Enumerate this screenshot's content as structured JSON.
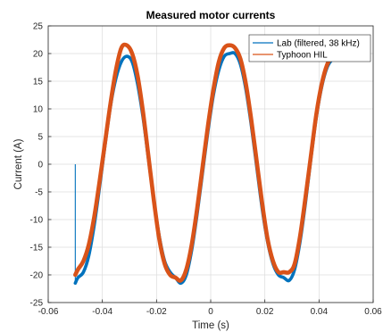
{
  "chart_data": {
    "type": "line",
    "title": "Measured motor currents",
    "xlabel": "Time (s)",
    "ylabel": "Current (A)",
    "xlim": [
      -0.06,
      0.06
    ],
    "ylim": [
      -25,
      25
    ],
    "xticks": [
      -0.06,
      -0.04,
      -0.02,
      0,
      0.02,
      0.04,
      0.06
    ],
    "xtick_labels": [
      "-0.06",
      "-0.04",
      "-0.02",
      "0",
      "0.02",
      "0.04",
      "0.06"
    ],
    "yticks": [
      -25,
      -20,
      -15,
      -10,
      -5,
      0,
      5,
      10,
      15,
      20,
      25
    ],
    "ytick_labels": [
      "-25",
      "-20",
      "-15",
      "-10",
      "-5",
      "0",
      "5",
      "10",
      "15",
      "20",
      "25"
    ],
    "grid": true,
    "legend_position": "top-right",
    "series": [
      {
        "name": "Lab (filtered, 38 kHz)",
        "color": "#0072BD",
        "x": [
          -0.05,
          -0.05,
          -0.049,
          -0.047,
          -0.045,
          -0.043,
          -0.041,
          -0.039,
          -0.037,
          -0.035,
          -0.033,
          -0.031,
          -0.029,
          -0.027,
          -0.025,
          -0.023,
          -0.021,
          -0.019,
          -0.017,
          -0.015,
          -0.013,
          -0.011,
          -0.009,
          -0.007,
          -0.005,
          -0.003,
          -0.001,
          0.001,
          0.003,
          0.005,
          0.007,
          0.009,
          0.011,
          0.013,
          0.015,
          0.017,
          0.019,
          0.021,
          0.023,
          0.025,
          0.027,
          0.029,
          0.031,
          0.033,
          0.035,
          0.037,
          0.039,
          0.041,
          0.043,
          0.045,
          0.047
        ],
        "y": [
          0,
          -21.5,
          -20.5,
          -19.5,
          -16.5,
          -11.0,
          -4.0,
          3.5,
          10.5,
          15.5,
          18.5,
          19.5,
          18.5,
          14.5,
          8.5,
          1.0,
          -6.5,
          -13.0,
          -17.5,
          -19.5,
          -20.5,
          -21.5,
          -20.0,
          -15.5,
          -9.0,
          -1.5,
          6.0,
          12.5,
          17.0,
          19.5,
          20.0,
          20.0,
          18.0,
          13.5,
          7.0,
          -0.5,
          -8.0,
          -14.0,
          -18.0,
          -20.0,
          -20.5,
          -21.0,
          -19.0,
          -14.0,
          -7.0,
          1.0,
          8.5,
          14.0,
          17.5,
          19.0,
          19.5
        ]
      },
      {
        "name": "Typhoon HIL",
        "color": "#D95319",
        "x": [
          -0.05,
          -0.049,
          -0.047,
          -0.045,
          -0.043,
          -0.041,
          -0.039,
          -0.037,
          -0.035,
          -0.033,
          -0.031,
          -0.029,
          -0.027,
          -0.025,
          -0.023,
          -0.021,
          -0.019,
          -0.017,
          -0.015,
          -0.013,
          -0.011,
          -0.009,
          -0.007,
          -0.005,
          -0.003,
          -0.001,
          0.001,
          0.003,
          0.005,
          0.007,
          0.009,
          0.011,
          0.013,
          0.015,
          0.017,
          0.019,
          0.021,
          0.023,
          0.025,
          0.027,
          0.029,
          0.031,
          0.033,
          0.035,
          0.037,
          0.039,
          0.041,
          0.043,
          0.045,
          0.047
        ],
        "y": [
          -20.0,
          -19.0,
          -17.5,
          -14.5,
          -9.5,
          -3.0,
          4.0,
          11.0,
          17.0,
          21.0,
          21.5,
          20.0,
          16.0,
          9.5,
          1.5,
          -6.5,
          -13.5,
          -18.0,
          -20.0,
          -20.5,
          -21.0,
          -19.0,
          -14.5,
          -8.0,
          -0.5,
          7.0,
          13.5,
          18.5,
          21.0,
          21.5,
          21.0,
          19.0,
          14.5,
          8.0,
          0.5,
          -7.0,
          -13.5,
          -17.5,
          -19.5,
          -19.5,
          -19.5,
          -18.0,
          -13.0,
          -6.0,
          1.5,
          9.0,
          14.5,
          18.0,
          19.5,
          20.0
        ]
      }
    ]
  }
}
